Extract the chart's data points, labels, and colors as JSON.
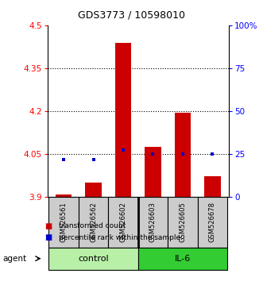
{
  "title": "GDS3773 / 10598010",
  "samples": [
    "GSM526561",
    "GSM526562",
    "GSM526602",
    "GSM526603",
    "GSM526605",
    "GSM526678"
  ],
  "red_values": [
    3.908,
    3.95,
    4.438,
    4.075,
    4.193,
    3.972
  ],
  "blue_values": [
    4.03,
    4.03,
    4.062,
    4.05,
    4.05,
    4.05
  ],
  "ylim_left": [
    3.9,
    4.5
  ],
  "ylim_right": [
    0,
    100
  ],
  "yticks_left": [
    3.9,
    4.05,
    4.2,
    4.35,
    4.5
  ],
  "yticks_right": [
    0,
    25,
    50,
    75,
    100
  ],
  "ytick_labels_left": [
    "3.9",
    "4.05",
    "4.2",
    "4.35",
    "4.5"
  ],
  "ytick_labels_right": [
    "0",
    "25",
    "50",
    "75",
    "100%"
  ],
  "hline_values": [
    4.05,
    4.2,
    4.35
  ],
  "groups": [
    {
      "label": "control",
      "indices": [
        0,
        1,
        2
      ],
      "color": "#b8f0a8"
    },
    {
      "label": "IL-6",
      "indices": [
        3,
        4,
        5
      ],
      "color": "#33cc33"
    }
  ],
  "agent_label": "agent",
  "bar_width": 0.55,
  "red_color": "#cc0000",
  "blue_color": "#0000cc",
  "baseline": 3.9,
  "sample_box_color": "#cccccc"
}
